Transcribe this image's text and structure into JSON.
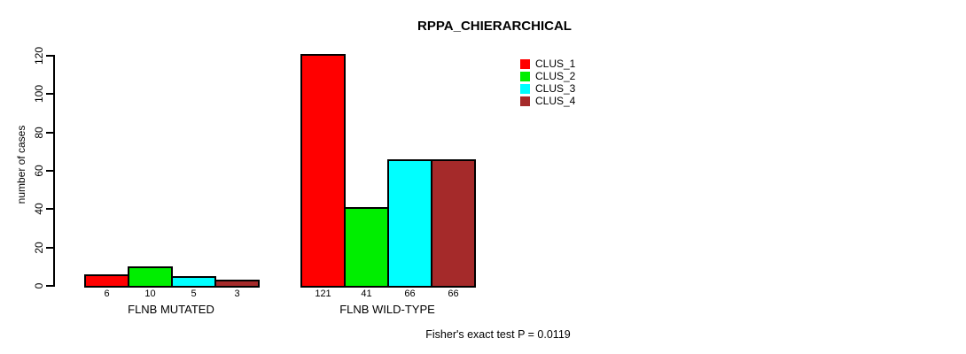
{
  "title": "RPPA_CHIERARCHICAL",
  "annotation": "Fisher's exact test P = 0.0119",
  "chart_data": {
    "type": "bar",
    "title": "RPPA_CHIERARCHICAL",
    "xlabel": "",
    "ylabel": "number of cases",
    "ylim": [
      0,
      120
    ],
    "yticks": [
      0,
      20,
      40,
      60,
      80,
      100,
      120
    ],
    "grid": false,
    "legend_position": "top-right",
    "categories": [
      "FLNB MUTATED",
      "FLNB WILD-TYPE"
    ],
    "series": [
      {
        "name": "CLUS_1",
        "color": "#ff0000",
        "values": [
          6,
          121
        ]
      },
      {
        "name": "CLUS_2",
        "color": "#00ee00",
        "values": [
          10,
          41
        ]
      },
      {
        "name": "CLUS_3",
        "color": "#00ffff",
        "values": [
          5,
          66
        ]
      },
      {
        "name": "CLUS_4",
        "color": "#a52a2a",
        "values": [
          3,
          66
        ]
      }
    ],
    "bar_labels": [
      [
        "6",
        "10",
        "5",
        "3"
      ],
      [
        "121",
        "41",
        "66",
        "66"
      ]
    ],
    "annotation": "Fisher's exact test P = 0.0119"
  }
}
